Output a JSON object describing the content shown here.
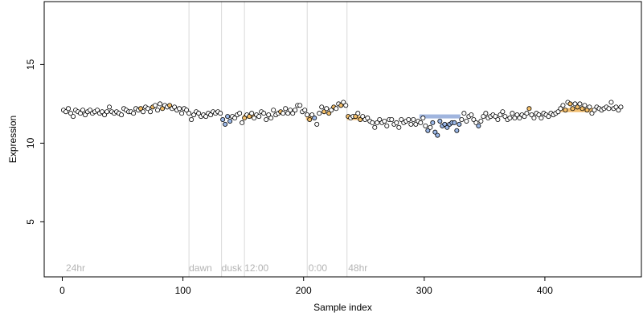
{
  "chart_data": {
    "type": "scatter",
    "title": "",
    "xlabel": "Sample index",
    "ylabel": "Expression",
    "xlim": [
      -15,
      480
    ],
    "ylim": [
      1.5,
      19
    ],
    "x_ticks": [
      0,
      100,
      200,
      300,
      400
    ],
    "y_ticks": [
      5,
      10,
      15
    ],
    "grid": false,
    "legend": "none",
    "colors": {
      "point_default": "#ffffff",
      "point_outline": "#000000",
      "point_orange": "#f5c06b",
      "point_blue": "#9bb8e8",
      "divider": "#d9d9d9",
      "segment_orange": "#f0b45a",
      "segment_blue": "#8fa8d8",
      "section_label": "#b3b3b3"
    },
    "section_labels": [
      {
        "x": 3,
        "text": "24hr"
      },
      {
        "x": 105,
        "text": "dawn"
      },
      {
        "x": 132,
        "text": "dusk"
      },
      {
        "x": 151,
        "text": "12:00"
      },
      {
        "x": 204,
        "text": "0:00"
      },
      {
        "x": 237,
        "text": "48hr"
      }
    ],
    "dividers": [
      105,
      132,
      151,
      203,
      236
    ],
    "segments": [
      {
        "x0": 150,
        "x1": 160,
        "y": 11.7,
        "color": "orange"
      },
      {
        "x0": 202,
        "x1": 207,
        "y": 11.6,
        "color": "orange"
      },
      {
        "x0": 236,
        "x1": 247,
        "y": 11.6,
        "color": "orange"
      },
      {
        "x0": 296,
        "x1": 330,
        "y": 11.7,
        "color": "blue"
      },
      {
        "x0": 412,
        "x1": 440,
        "y": 12.1,
        "color": "orange"
      }
    ],
    "series": [
      {
        "points": [
          [
            1,
            12.1,
            "w"
          ],
          [
            3,
            12.0,
            "w"
          ],
          [
            5,
            12.2,
            "w"
          ],
          [
            7,
            11.9,
            "w"
          ],
          [
            9,
            11.7,
            "w"
          ],
          [
            11,
            12.1,
            "w"
          ],
          [
            13,
            12.0,
            "w"
          ],
          [
            15,
            11.9,
            "w"
          ],
          [
            17,
            12.1,
            "w"
          ],
          [
            19,
            11.8,
            "w"
          ],
          [
            21,
            12.0,
            "w"
          ],
          [
            23,
            12.1,
            "w"
          ],
          [
            25,
            11.9,
            "w"
          ],
          [
            27,
            12.0,
            "w"
          ],
          [
            29,
            12.1,
            "w"
          ],
          [
            31,
            11.9,
            "w"
          ],
          [
            33,
            12.0,
            "w"
          ],
          [
            35,
            11.8,
            "w"
          ],
          [
            37,
            12.0,
            "w"
          ],
          [
            39,
            12.3,
            "w"
          ],
          [
            41,
            12.0,
            "w"
          ],
          [
            43,
            11.9,
            "w"
          ],
          [
            45,
            12.0,
            "w"
          ],
          [
            47,
            11.9,
            "w"
          ],
          [
            49,
            11.8,
            "w"
          ],
          [
            51,
            12.2,
            "w"
          ],
          [
            53,
            12.1,
            "w"
          ],
          [
            55,
            12.0,
            "w"
          ],
          [
            57,
            12.0,
            "w"
          ],
          [
            59,
            11.9,
            "w"
          ],
          [
            61,
            12.2,
            "w"
          ],
          [
            63,
            12.1,
            "w"
          ],
          [
            65,
            12.2,
            "o"
          ],
          [
            67,
            12.0,
            "w"
          ],
          [
            69,
            12.3,
            "w"
          ],
          [
            71,
            12.2,
            "w"
          ],
          [
            73,
            12.0,
            "w"
          ],
          [
            75,
            12.3,
            "o"
          ],
          [
            77,
            12.4,
            "w"
          ],
          [
            79,
            12.1,
            "w"
          ],
          [
            81,
            12.5,
            "w"
          ],
          [
            83,
            12.2,
            "o"
          ],
          [
            85,
            12.4,
            "w"
          ],
          [
            87,
            12.3,
            "w"
          ],
          [
            89,
            12.4,
            "o"
          ],
          [
            91,
            12.2,
            "w"
          ],
          [
            93,
            12.3,
            "w"
          ],
          [
            95,
            12.1,
            "w"
          ],
          [
            97,
            12.2,
            "w"
          ],
          [
            99,
            11.9,
            "w"
          ],
          [
            101,
            12.2,
            "w"
          ],
          [
            103,
            12.1,
            "w"
          ],
          [
            105,
            11.9,
            "w"
          ],
          [
            107,
            11.5,
            "w"
          ],
          [
            109,
            11.8,
            "w"
          ],
          [
            111,
            12.0,
            "w"
          ],
          [
            113,
            11.9,
            "w"
          ],
          [
            115,
            11.7,
            "w"
          ],
          [
            117,
            11.8,
            "w"
          ],
          [
            119,
            11.7,
            "w"
          ],
          [
            121,
            11.9,
            "w"
          ],
          [
            123,
            11.8,
            "w"
          ],
          [
            125,
            12.0,
            "w"
          ],
          [
            127,
            11.9,
            "w"
          ],
          [
            129,
            12.0,
            "w"
          ],
          [
            131,
            11.9,
            "w"
          ],
          [
            133,
            11.5,
            "b"
          ],
          [
            135,
            11.2,
            "b"
          ],
          [
            137,
            11.7,
            "b"
          ],
          [
            139,
            11.4,
            "b"
          ],
          [
            141,
            11.7,
            "w"
          ],
          [
            143,
            11.6,
            "w"
          ],
          [
            145,
            11.8,
            "w"
          ],
          [
            147,
            11.9,
            "w"
          ],
          [
            149,
            11.3,
            "w"
          ],
          [
            151,
            11.6,
            "o"
          ],
          [
            153,
            11.8,
            "w"
          ],
          [
            155,
            11.7,
            "o"
          ],
          [
            157,
            11.9,
            "w"
          ],
          [
            159,
            11.6,
            "w"
          ],
          [
            161,
            11.8,
            "w"
          ],
          [
            163,
            11.7,
            "w"
          ],
          [
            165,
            12.0,
            "w"
          ],
          [
            167,
            11.9,
            "w"
          ],
          [
            169,
            11.5,
            "w"
          ],
          [
            171,
            11.8,
            "w"
          ],
          [
            173,
            11.6,
            "w"
          ],
          [
            175,
            12.1,
            "w"
          ],
          [
            177,
            11.8,
            "w"
          ],
          [
            179,
            11.9,
            "w"
          ],
          [
            181,
            12.0,
            "o"
          ],
          [
            183,
            11.9,
            "w"
          ],
          [
            185,
            12.2,
            "w"
          ],
          [
            187,
            11.9,
            "w"
          ],
          [
            189,
            12.1,
            "w"
          ],
          [
            191,
            11.9,
            "w"
          ],
          [
            193,
            12.1,
            "w"
          ],
          [
            195,
            12.4,
            "w"
          ],
          [
            197,
            12.4,
            "w"
          ],
          [
            199,
            12.0,
            "w"
          ],
          [
            201,
            12.1,
            "w"
          ],
          [
            203,
            11.8,
            "w"
          ],
          [
            205,
            11.5,
            "o"
          ],
          [
            207,
            11.8,
            "w"
          ],
          [
            209,
            11.6,
            "b"
          ],
          [
            211,
            11.2,
            "w"
          ],
          [
            213,
            11.9,
            "w"
          ],
          [
            215,
            12.3,
            "w"
          ],
          [
            217,
            12.0,
            "o"
          ],
          [
            219,
            12.2,
            "w"
          ],
          [
            221,
            11.9,
            "o"
          ],
          [
            223,
            12.1,
            "w"
          ],
          [
            225,
            12.3,
            "o"
          ],
          [
            227,
            12.2,
            "w"
          ],
          [
            229,
            12.5,
            "w"
          ],
          [
            231,
            12.4,
            "o"
          ],
          [
            233,
            12.6,
            "w"
          ],
          [
            235,
            12.4,
            "w"
          ],
          [
            237,
            11.7,
            "o"
          ],
          [
            239,
            11.6,
            "w"
          ],
          [
            241,
            11.7,
            "w"
          ],
          [
            243,
            11.7,
            "o"
          ],
          [
            245,
            11.9,
            "w"
          ],
          [
            247,
            11.5,
            "o"
          ],
          [
            249,
            11.7,
            "w"
          ],
          [
            251,
            11.5,
            "w"
          ],
          [
            253,
            11.6,
            "w"
          ],
          [
            255,
            11.4,
            "w"
          ],
          [
            257,
            11.3,
            "w"
          ],
          [
            259,
            11.0,
            "w"
          ],
          [
            261,
            11.3,
            "w"
          ],
          [
            263,
            11.5,
            "w"
          ],
          [
            265,
            11.3,
            "w"
          ],
          [
            267,
            11.4,
            "w"
          ],
          [
            269,
            11.1,
            "w"
          ],
          [
            271,
            11.5,
            "w"
          ],
          [
            273,
            11.5,
            "w"
          ],
          [
            275,
            11.2,
            "w"
          ],
          [
            277,
            11.3,
            "w"
          ],
          [
            279,
            11.0,
            "w"
          ],
          [
            281,
            11.5,
            "w"
          ],
          [
            283,
            11.3,
            "w"
          ],
          [
            285,
            11.4,
            "w"
          ],
          [
            287,
            11.5,
            "w"
          ],
          [
            289,
            11.2,
            "w"
          ],
          [
            291,
            11.5,
            "w"
          ],
          [
            293,
            11.2,
            "w"
          ],
          [
            295,
            11.4,
            "w"
          ],
          [
            297,
            11.3,
            "w"
          ],
          [
            299,
            11.6,
            "w"
          ],
          [
            301,
            11.1,
            "w"
          ],
          [
            303,
            10.8,
            "b"
          ],
          [
            305,
            11.0,
            "w"
          ],
          [
            307,
            11.3,
            "b"
          ],
          [
            309,
            10.7,
            "b"
          ],
          [
            311,
            10.5,
            "b"
          ],
          [
            313,
            11.4,
            "b"
          ],
          [
            315,
            11.1,
            "b"
          ],
          [
            317,
            11.2,
            "b"
          ],
          [
            319,
            11.0,
            "b"
          ],
          [
            321,
            11.2,
            "b"
          ],
          [
            323,
            11.3,
            "b"
          ],
          [
            325,
            11.3,
            "b"
          ],
          [
            327,
            10.8,
            "b"
          ],
          [
            329,
            11.2,
            "b"
          ],
          [
            331,
            11.5,
            "w"
          ],
          [
            333,
            11.9,
            "w"
          ],
          [
            335,
            11.4,
            "w"
          ],
          [
            337,
            11.7,
            "w"
          ],
          [
            339,
            11.8,
            "w"
          ],
          [
            341,
            11.5,
            "w"
          ],
          [
            343,
            11.3,
            "w"
          ],
          [
            345,
            11.1,
            "b"
          ],
          [
            347,
            11.4,
            "w"
          ],
          [
            349,
            11.7,
            "w"
          ],
          [
            351,
            11.9,
            "w"
          ],
          [
            353,
            11.6,
            "w"
          ],
          [
            355,
            11.7,
            "w"
          ],
          [
            357,
            11.8,
            "w"
          ],
          [
            359,
            11.7,
            "w"
          ],
          [
            361,
            11.5,
            "w"
          ],
          [
            363,
            11.8,
            "w"
          ],
          [
            365,
            12.0,
            "w"
          ],
          [
            367,
            11.7,
            "w"
          ],
          [
            369,
            11.5,
            "w"
          ],
          [
            371,
            11.6,
            "w"
          ],
          [
            373,
            11.9,
            "w"
          ],
          [
            375,
            11.6,
            "w"
          ],
          [
            377,
            11.8,
            "w"
          ],
          [
            379,
            11.6,
            "w"
          ],
          [
            381,
            11.8,
            "w"
          ],
          [
            383,
            11.7,
            "w"
          ],
          [
            385,
            11.9,
            "w"
          ],
          [
            387,
            12.2,
            "o"
          ],
          [
            389,
            11.8,
            "w"
          ],
          [
            391,
            11.6,
            "w"
          ],
          [
            393,
            11.9,
            "w"
          ],
          [
            395,
            11.8,
            "w"
          ],
          [
            397,
            11.6,
            "w"
          ],
          [
            399,
            11.9,
            "w"
          ],
          [
            401,
            11.8,
            "w"
          ],
          [
            403,
            11.7,
            "w"
          ],
          [
            405,
            11.9,
            "w"
          ],
          [
            407,
            11.8,
            "w"
          ],
          [
            409,
            11.9,
            "w"
          ],
          [
            411,
            12.0,
            "w"
          ],
          [
            413,
            12.2,
            "w"
          ],
          [
            415,
            12.4,
            "w"
          ],
          [
            417,
            12.1,
            "o"
          ],
          [
            419,
            12.6,
            "w"
          ],
          [
            421,
            12.5,
            "o"
          ],
          [
            423,
            12.2,
            "o"
          ],
          [
            425,
            12.5,
            "w"
          ],
          [
            427,
            12.3,
            "o"
          ],
          [
            429,
            12.5,
            "w"
          ],
          [
            431,
            12.2,
            "o"
          ],
          [
            433,
            12.4,
            "w"
          ],
          [
            435,
            12.1,
            "o"
          ],
          [
            437,
            12.3,
            "w"
          ],
          [
            439,
            11.9,
            "w"
          ],
          [
            441,
            12.1,
            "w"
          ],
          [
            443,
            12.3,
            "w"
          ],
          [
            445,
            12.2,
            "w"
          ],
          [
            447,
            12.1,
            "w"
          ],
          [
            449,
            12.2,
            "w"
          ],
          [
            451,
            12.3,
            "w"
          ],
          [
            453,
            12.2,
            "w"
          ],
          [
            455,
            12.6,
            "w"
          ],
          [
            457,
            12.2,
            "w"
          ],
          [
            459,
            12.3,
            "w"
          ],
          [
            461,
            12.1,
            "w"
          ],
          [
            463,
            12.3,
            "w"
          ]
        ]
      }
    ]
  }
}
